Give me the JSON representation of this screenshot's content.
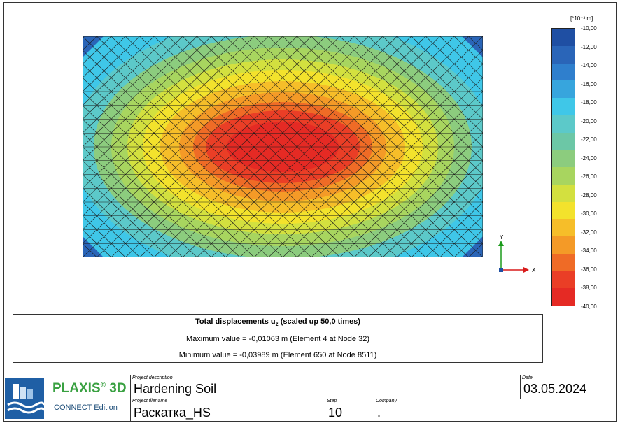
{
  "legend": {
    "unit": "[*10⁻³ m]",
    "labels": [
      "-10,00",
      "-12,00",
      "-14,00",
      "-16,00",
      "-18,00",
      "-20,00",
      "-22,00",
      "-24,00",
      "-26,00",
      "-28,00",
      "-30,00",
      "-32,00",
      "-34,00",
      "-36,00",
      "-38,00",
      "-40,00"
    ],
    "colors": [
      "#1f4fa3",
      "#2a65b8",
      "#2f7fcd",
      "#37a5dd",
      "#3fc7e8",
      "#5cc9c9",
      "#6cc7a6",
      "#8ccc7e",
      "#a8d55f",
      "#d3e03f",
      "#f3e22c",
      "#f6be29",
      "#f49a27",
      "#ef6b26",
      "#ea3e26",
      "#e52a24"
    ]
  },
  "axis": {
    "y_label": "Y",
    "x_label": "X"
  },
  "info": {
    "title": "Total displacements u",
    "title_sub": "z",
    "title_suffix": " (scaled up 50,0 times)",
    "max": "Maximum value = -0,01063 m (Element 4 at Node 32)",
    "min": "Minimum value = -0,03989 m (Element 650 at Node 8511)"
  },
  "footer": {
    "logo_main": "PLAXIS",
    "logo_sup": "®",
    "logo_3d": " 3D",
    "logo_edition": "CONNECT Edition",
    "project_description_label": "Project description",
    "project_description": "Hardening Soil",
    "date_label": "Date",
    "date": "03.05.2024",
    "project_filename_label": "Project filename",
    "project_filename": "Раскатка_HS",
    "step_label": "Step",
    "step": "10",
    "company_label": "Company",
    "company": "."
  }
}
